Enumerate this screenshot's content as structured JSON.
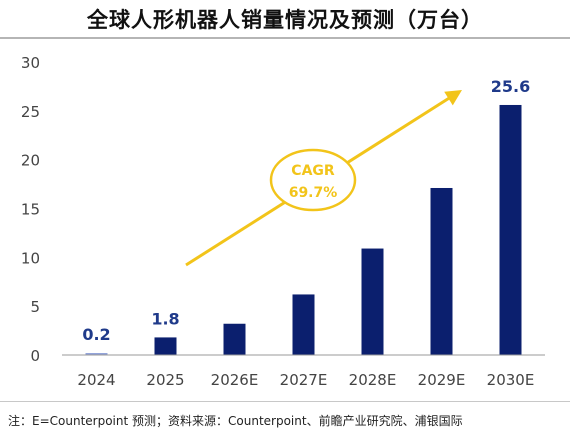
{
  "title": "全球人形机器人销量情况及预测（万台）",
  "source": "注：E=Counterpoint 预测；资料来源：Counterpoint、前瞻产业研究院、浦银国际",
  "chart_data": {
    "type": "bar",
    "categories": [
      "2024",
      "2025",
      "2026E",
      "2027E",
      "2028E",
      "2029E",
      "2030E"
    ],
    "values": [
      0.2,
      1.8,
      3.2,
      6.2,
      10.9,
      17.1,
      25.6
    ],
    "data_labels": {
      "2024": "0.2",
      "2025": "1.8",
      "2030E": "25.6"
    },
    "ylim": [
      0,
      30
    ],
    "yticks": [
      0,
      5,
      10,
      15,
      20,
      25,
      30
    ],
    "grid": false,
    "annotation": {
      "line1": "CAGR",
      "line2": "69.7%"
    },
    "colors": {
      "bar": "#0b1f6e",
      "highlight_bar": "#8ea0d8",
      "arrow": "#f2c41a",
      "label": "#1f3a8a",
      "axis": "#999999",
      "tick_text": "#444444"
    }
  }
}
